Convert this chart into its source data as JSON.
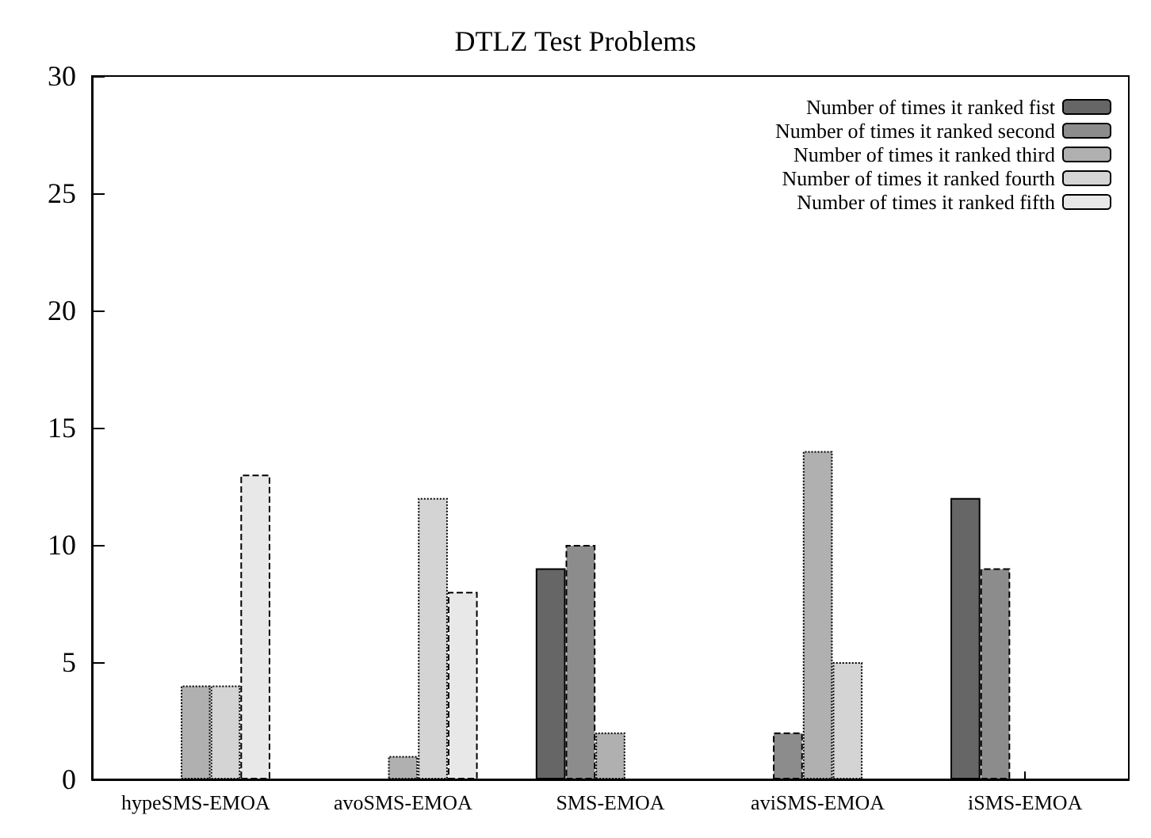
{
  "chart_data": {
    "type": "bar",
    "title": "DTLZ Test Problems",
    "categories": [
      "hypeSMS-EMOA",
      "avoSMS-EMOA",
      "SMS-EMOA",
      "aviSMS-EMOA",
      "iSMS-EMOA"
    ],
    "series": [
      {
        "name": "Number of times it ranked fist",
        "color": "#666666",
        "values": [
          0,
          0,
          9,
          0,
          12
        ]
      },
      {
        "name": "Number of times it ranked second",
        "color": "#8c8c8c",
        "values": [
          0,
          0,
          10,
          2,
          9
        ]
      },
      {
        "name": "Number of times it ranked third",
        "color": "#b0b0b0",
        "values": [
          4,
          1,
          2,
          14,
          0
        ]
      },
      {
        "name": "Number of times it ranked fourth",
        "color": "#d4d4d4",
        "values": [
          4,
          12,
          0,
          5,
          0
        ]
      },
      {
        "name": "Number of times it ranked fifth",
        "color": "#e8e8e8",
        "values": [
          13,
          8,
          0,
          0,
          0
        ]
      }
    ],
    "ylim": [
      0,
      30
    ],
    "yticks": [
      0,
      5,
      10,
      15,
      20,
      25,
      30
    ],
    "grid": false,
    "legend": "top right"
  }
}
